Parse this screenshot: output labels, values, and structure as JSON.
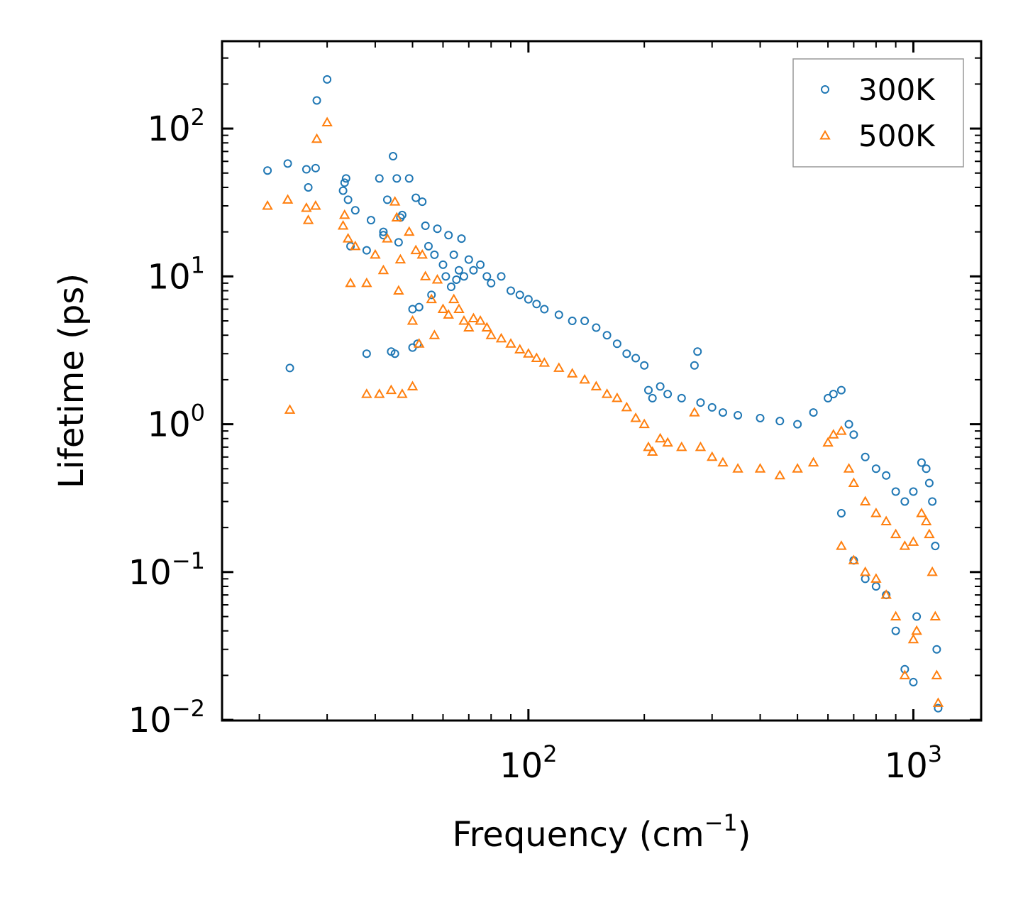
{
  "chart_data": {
    "type": "scatter",
    "title": "",
    "xlabel": "Frequency (cm",
    "xlabel_sup": "−1",
    "xlabel_tail": ")",
    "ylabel": "Lifetime (ps)",
    "xscale": "log",
    "yscale": "log",
    "xlim": [
      16,
      1500
    ],
    "ylim": [
      0.0099,
      390
    ],
    "x_ticks": [
      {
        "value": 100,
        "base": "10",
        "exp": "2"
      },
      {
        "value": 1000,
        "base": "10",
        "exp": "3"
      }
    ],
    "y_ticks": [
      {
        "value": 0.01,
        "base": "10",
        "exp": "−2"
      },
      {
        "value": 0.1,
        "base": "10",
        "exp": "−1"
      },
      {
        "value": 1,
        "base": "10",
        "exp": "0"
      },
      {
        "value": 10,
        "base": "10",
        "exp": "1"
      },
      {
        "value": 100,
        "base": "10",
        "exp": "2"
      }
    ],
    "legend": {
      "position": "top-right"
    },
    "series": [
      {
        "name": "300K",
        "marker": "circle",
        "color": "#1f77b4",
        "points": [
          [
            21,
            52
          ],
          [
            23.7,
            58
          ],
          [
            24,
            2.4
          ],
          [
            26.5,
            53
          ],
          [
            26.8,
            40
          ],
          [
            28,
            54
          ],
          [
            28.2,
            155
          ],
          [
            30,
            215
          ],
          [
            33,
            38
          ],
          [
            33.3,
            43
          ],
          [
            33.6,
            46
          ],
          [
            34,
            33
          ],
          [
            34.5,
            16
          ],
          [
            35.5,
            28
          ],
          [
            38,
            15
          ],
          [
            38,
            3
          ],
          [
            39,
            24
          ],
          [
            41,
            46
          ],
          [
            42,
            19
          ],
          [
            42,
            20
          ],
          [
            43,
            33
          ],
          [
            44,
            3.1
          ],
          [
            44.5,
            65
          ],
          [
            45,
            3
          ],
          [
            45.5,
            46
          ],
          [
            46,
            17
          ],
          [
            46.5,
            25
          ],
          [
            47,
            26
          ],
          [
            49,
            46
          ],
          [
            50,
            6
          ],
          [
            50,
            3.3
          ],
          [
            51,
            34
          ],
          [
            51.5,
            3.5
          ],
          [
            52,
            6.2
          ],
          [
            53,
            32
          ],
          [
            54,
            22
          ],
          [
            55,
            16
          ],
          [
            56,
            7.5
          ],
          [
            57,
            14
          ],
          [
            58,
            21
          ],
          [
            60,
            12
          ],
          [
            61,
            10
          ],
          [
            62,
            19
          ],
          [
            63,
            8.5
          ],
          [
            64,
            14
          ],
          [
            65,
            9.5
          ],
          [
            66,
            11
          ],
          [
            67,
            18
          ],
          [
            68,
            10
          ],
          [
            70,
            13
          ],
          [
            72,
            11
          ],
          [
            75,
            12
          ],
          [
            78,
            10
          ],
          [
            80,
            9
          ],
          [
            85,
            10
          ],
          [
            90,
            8
          ],
          [
            95,
            7.5
          ],
          [
            100,
            7
          ],
          [
            105,
            6.5
          ],
          [
            110,
            6
          ],
          [
            120,
            5.5
          ],
          [
            130,
            5
          ],
          [
            140,
            5
          ],
          [
            150,
            4.5
          ],
          [
            160,
            4
          ],
          [
            170,
            3.5
          ],
          [
            180,
            3
          ],
          [
            190,
            2.8
          ],
          [
            200,
            2.5
          ],
          [
            205,
            1.7
          ],
          [
            210,
            1.5
          ],
          [
            220,
            1.8
          ],
          [
            230,
            1.6
          ],
          [
            250,
            1.5
          ],
          [
            270,
            2.5
          ],
          [
            275,
            3.1
          ],
          [
            280,
            1.4
          ],
          [
            300,
            1.3
          ],
          [
            320,
            1.2
          ],
          [
            350,
            1.15
          ],
          [
            400,
            1.1
          ],
          [
            450,
            1.05
          ],
          [
            500,
            1.0
          ],
          [
            550,
            1.2
          ],
          [
            600,
            1.5
          ],
          [
            620,
            1.6
          ],
          [
            650,
            1.7
          ],
          [
            680,
            1.0
          ],
          [
            700,
            0.85
          ],
          [
            750,
            0.6
          ],
          [
            800,
            0.5
          ],
          [
            850,
            0.45
          ],
          [
            900,
            0.35
          ],
          [
            950,
            0.3
          ],
          [
            1000,
            0.35
          ],
          [
            1020,
            0.05
          ],
          [
            1050,
            0.55
          ],
          [
            1080,
            0.5
          ],
          [
            1100,
            0.4
          ],
          [
            1120,
            0.3
          ],
          [
            1140,
            0.15
          ],
          [
            1150,
            0.03
          ],
          [
            1160,
            0.012
          ],
          [
            650,
            0.25
          ],
          [
            700,
            0.12
          ],
          [
            750,
            0.09
          ],
          [
            800,
            0.08
          ],
          [
            850,
            0.07
          ],
          [
            900,
            0.04
          ],
          [
            950,
            0.022
          ],
          [
            1000,
            0.018
          ]
        ]
      },
      {
        "name": "500K",
        "marker": "triangle",
        "color": "#ff7f0e",
        "points": [
          [
            21,
            30
          ],
          [
            23.7,
            33
          ],
          [
            24,
            1.25
          ],
          [
            26.5,
            29
          ],
          [
            26.8,
            24
          ],
          [
            28,
            30
          ],
          [
            28.2,
            85
          ],
          [
            30,
            110
          ],
          [
            33,
            22
          ],
          [
            33.3,
            26
          ],
          [
            34,
            18
          ],
          [
            34.5,
            9
          ],
          [
            35.5,
            16
          ],
          [
            38,
            9
          ],
          [
            38,
            1.6
          ],
          [
            40,
            14
          ],
          [
            41,
            1.6
          ],
          [
            42,
            11
          ],
          [
            43,
            18
          ],
          [
            44,
            1.7
          ],
          [
            45,
            32
          ],
          [
            45.5,
            25
          ],
          [
            46,
            8
          ],
          [
            46.5,
            13
          ],
          [
            47,
            1.6
          ],
          [
            49,
            20
          ],
          [
            50,
            5
          ],
          [
            50,
            1.8
          ],
          [
            51,
            15
          ],
          [
            52,
            3.5
          ],
          [
            53,
            14
          ],
          [
            54,
            10
          ],
          [
            56,
            7
          ],
          [
            57,
            4
          ],
          [
            58,
            9.5
          ],
          [
            60,
            6
          ],
          [
            62,
            5.5
          ],
          [
            64,
            7
          ],
          [
            66,
            6
          ],
          [
            68,
            5
          ],
          [
            70,
            4.5
          ],
          [
            72,
            5.2
          ],
          [
            75,
            5
          ],
          [
            78,
            4.5
          ],
          [
            80,
            4
          ],
          [
            85,
            3.8
          ],
          [
            90,
            3.5
          ],
          [
            95,
            3.2
          ],
          [
            100,
            3
          ],
          [
            105,
            2.8
          ],
          [
            110,
            2.6
          ],
          [
            120,
            2.4
          ],
          [
            130,
            2.2
          ],
          [
            140,
            2
          ],
          [
            150,
            1.8
          ],
          [
            160,
            1.6
          ],
          [
            170,
            1.5
          ],
          [
            180,
            1.3
          ],
          [
            190,
            1.1
          ],
          [
            200,
            1.0
          ],
          [
            205,
            0.7
          ],
          [
            210,
            0.65
          ],
          [
            220,
            0.8
          ],
          [
            230,
            0.75
          ],
          [
            250,
            0.7
          ],
          [
            270,
            1.2
          ],
          [
            280,
            0.7
          ],
          [
            300,
            0.6
          ],
          [
            320,
            0.55
          ],
          [
            350,
            0.5
          ],
          [
            400,
            0.5
          ],
          [
            450,
            0.45
          ],
          [
            500,
            0.5
          ],
          [
            550,
            0.55
          ],
          [
            600,
            0.75
          ],
          [
            620,
            0.85
          ],
          [
            650,
            0.9
          ],
          [
            680,
            0.5
          ],
          [
            700,
            0.4
          ],
          [
            750,
            0.3
          ],
          [
            800,
            0.25
          ],
          [
            850,
            0.22
          ],
          [
            900,
            0.18
          ],
          [
            950,
            0.15
          ],
          [
            1000,
            0.16
          ],
          [
            1020,
            0.04
          ],
          [
            1050,
            0.25
          ],
          [
            1080,
            0.22
          ],
          [
            1100,
            0.18
          ],
          [
            1120,
            0.1
          ],
          [
            1140,
            0.05
          ],
          [
            1150,
            0.02
          ],
          [
            1160,
            0.013
          ],
          [
            650,
            0.15
          ],
          [
            700,
            0.12
          ],
          [
            750,
            0.1
          ],
          [
            800,
            0.09
          ],
          [
            850,
            0.07
          ],
          [
            900,
            0.05
          ],
          [
            950,
            0.02
          ],
          [
            1000,
            0.035
          ]
        ]
      }
    ]
  }
}
